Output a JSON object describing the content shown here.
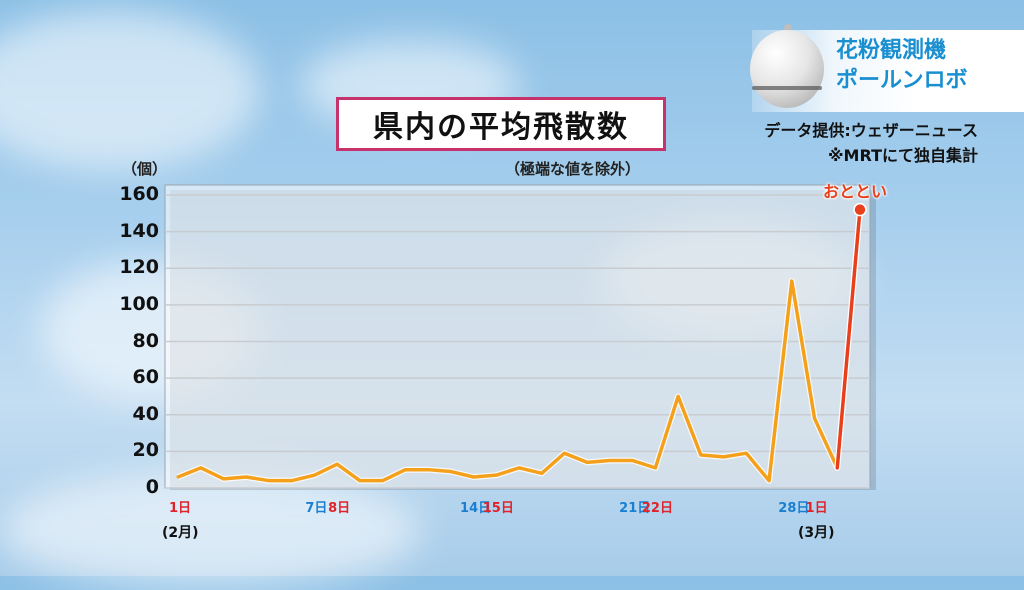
{
  "header": {
    "title": "県内の平均飛散数",
    "subtitle": "（極端な値を除外）",
    "unit": "（個）"
  },
  "info": {
    "device_line1": "花粉観測機",
    "device_line2": "ポールンロボ",
    "credit_line1": "データ提供:ウェザーニュース",
    "credit_line2": "※MRTにて独自集計"
  },
  "callout": "おととい",
  "months": {
    "feb": "(2月)",
    "mar": "(3月)"
  },
  "colors": {
    "line": "#f4a01a",
    "highlight": "#e8401c",
    "grid": "#c8ccd0",
    "title_border": "#c8326a",
    "weekday_blue": "#1a7fd0",
    "weekend_red": "#e0232a"
  },
  "chart_data": {
    "type": "line",
    "title": "県内の平均飛散数",
    "ylabel": "（個）",
    "ylim": [
      0,
      160
    ],
    "yticks": [
      "0",
      "20",
      "40",
      "60",
      "80",
      "100",
      "120",
      "140",
      "160"
    ],
    "x_tick_labels": [
      {
        "day": 1,
        "text": "1日",
        "color": "red"
      },
      {
        "day": 7,
        "text": "7日",
        "color": "blue"
      },
      {
        "day": 8,
        "text": "8日",
        "color": "red"
      },
      {
        "day": 14,
        "text": "14日",
        "color": "blue"
      },
      {
        "day": 15,
        "text": "15日",
        "color": "red"
      },
      {
        "day": 21,
        "text": "21日",
        "color": "blue"
      },
      {
        "day": 22,
        "text": "22日",
        "color": "red"
      },
      {
        "day": 28,
        "text": "28日",
        "color": "blue"
      },
      {
        "day": 29,
        "text": "1日",
        "color": "red"
      }
    ],
    "x": [
      1,
      2,
      3,
      4,
      5,
      6,
      7,
      8,
      9,
      10,
      11,
      12,
      13,
      14,
      15,
      16,
      17,
      18,
      19,
      20,
      21,
      22,
      23,
      24,
      25,
      26,
      27,
      28,
      29,
      30
    ],
    "series": [
      {
        "values": [
          6,
          11,
          5,
          6,
          4,
          4,
          7,
          13,
          4,
          4,
          10,
          10,
          9,
          6,
          7,
          11,
          8,
          19,
          14,
          15,
          15,
          11,
          50,
          18,
          17,
          19,
          4,
          113,
          38,
          11
        ],
        "color": "#f4a01a"
      }
    ],
    "highlight": {
      "from_day": 30,
      "to_day": 31,
      "to_value": 152,
      "color": "#e8401c",
      "label": "おととい"
    },
    "grid": true
  }
}
